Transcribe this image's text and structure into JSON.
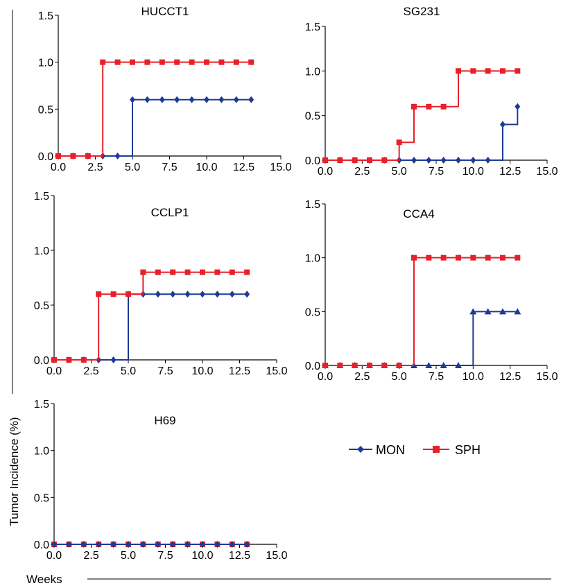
{
  "figure": {
    "ylabel": "Tumor Incidence (%)",
    "xlabel": "Weeks"
  },
  "legend": {
    "items": [
      {
        "label": "MON",
        "color": "#1f3a93",
        "marker": "diamond"
      },
      {
        "label": "SPH",
        "color": "#e8202a",
        "marker": "square"
      }
    ]
  },
  "chart_data": [
    {
      "type": "line",
      "step": true,
      "title": "HUCCT1",
      "xlim": [
        0,
        15
      ],
      "ylim": [
        0,
        1.5
      ],
      "xticks": [
        "0.0",
        "2.5",
        "5.0",
        "7.5",
        "10.0",
        "12.5",
        "15.0"
      ],
      "yticks": [
        "0.0",
        "0.5",
        "1.0",
        "1.5"
      ],
      "x": [
        0,
        1,
        2,
        3,
        4,
        5,
        6,
        7,
        8,
        9,
        10,
        11,
        12,
        13
      ],
      "series": [
        {
          "name": "MON",
          "marker": "diamond",
          "color": "#1f3a93",
          "values": [
            0,
            0,
            0,
            0,
            0,
            0.6,
            0.6,
            0.6,
            0.6,
            0.6,
            0.6,
            0.6,
            0.6,
            0.6
          ]
        },
        {
          "name": "SPH",
          "marker": "square",
          "color": "#e8202a",
          "values": [
            0,
            0,
            0,
            1,
            1,
            1,
            1,
            1,
            1,
            1,
            1,
            1,
            1,
            1
          ]
        }
      ]
    },
    {
      "type": "line",
      "step": true,
      "title": "SG231",
      "xlim": [
        0,
        15
      ],
      "ylim": [
        0,
        1.5
      ],
      "xticks": [
        "0.0",
        "2.5",
        "5.0",
        "7.5",
        "10.0",
        "12.5",
        "15.0"
      ],
      "yticks": [
        "0.0",
        "0.5",
        "1.0",
        "1.5"
      ],
      "x": [
        0,
        1,
        2,
        3,
        4,
        5,
        6,
        7,
        8,
        9,
        10,
        11,
        12,
        13
      ],
      "series": [
        {
          "name": "MON",
          "marker": "diamond",
          "color": "#1f3a93",
          "values": [
            0,
            0,
            0,
            0,
            0,
            0,
            0,
            0,
            0,
            0,
            0,
            0,
            0.4,
            0.6
          ]
        },
        {
          "name": "SPH",
          "marker": "square",
          "color": "#e8202a",
          "values": [
            0,
            0,
            0,
            0,
            0,
            0.2,
            0.6,
            0.6,
            0.6,
            1,
            1,
            1,
            1,
            1
          ]
        }
      ]
    },
    {
      "type": "line",
      "step": true,
      "title": "CCLP1",
      "xlim": [
        0,
        15
      ],
      "ylim": [
        0,
        1.5
      ],
      "xticks": [
        "0.0",
        "2.5",
        "5.0",
        "7.5",
        "10.0",
        "12.5",
        "15.0"
      ],
      "yticks": [
        "0.0",
        "0.5",
        "1.0",
        "1.5"
      ],
      "x": [
        0,
        1,
        2,
        3,
        4,
        5,
        6,
        7,
        8,
        9,
        10,
        11,
        12,
        13
      ],
      "series": [
        {
          "name": "MON",
          "marker": "diamond",
          "color": "#1f3a93",
          "values": [
            0,
            0,
            0,
            0,
            0,
            0.6,
            0.6,
            0.6,
            0.6,
            0.6,
            0.6,
            0.6,
            0.6,
            0.6
          ]
        },
        {
          "name": "SPH",
          "marker": "square",
          "color": "#e8202a",
          "values": [
            0,
            0,
            0,
            0.6,
            0.6,
            0.6,
            0.8,
            0.8,
            0.8,
            0.8,
            0.8,
            0.8,
            0.8,
            0.8
          ]
        }
      ]
    },
    {
      "type": "line",
      "step": true,
      "title": "CCA4",
      "xlim": [
        0,
        15
      ],
      "ylim": [
        0,
        1.5
      ],
      "xticks": [
        "0.0",
        "2.5",
        "5.0",
        "7.5",
        "10.0",
        "12.5",
        "15.0"
      ],
      "yticks": [
        "0.0",
        "0.5",
        "1.0",
        "1.5"
      ],
      "x": [
        0,
        1,
        2,
        3,
        4,
        5,
        6,
        7,
        8,
        9,
        10,
        11,
        12,
        13
      ],
      "series": [
        {
          "name": "MON",
          "marker": "triangle",
          "color": "#1f3a93",
          "values": [
            0,
            0,
            0,
            0,
            0,
            0,
            0,
            0,
            0,
            0,
            0.5,
            0.5,
            0.5,
            0.5
          ]
        },
        {
          "name": "SPH",
          "marker": "square",
          "color": "#e8202a",
          "values": [
            0,
            0,
            0,
            0,
            0,
            0,
            1,
            1,
            1,
            1,
            1,
            1,
            1,
            1
          ]
        }
      ]
    },
    {
      "type": "line",
      "step": true,
      "title": "H69",
      "xlim": [
        0,
        15
      ],
      "ylim": [
        0,
        1.5
      ],
      "xticks": [
        "0.0",
        "2.5",
        "5.0",
        "7.5",
        "10.0",
        "12.5",
        "15.0"
      ],
      "yticks": [
        "0.0",
        "0.5",
        "1.0",
        "1.5"
      ],
      "x": [
        0,
        1,
        2,
        3,
        4,
        5,
        6,
        7,
        8,
        9,
        10,
        11,
        12,
        13
      ],
      "series": [
        {
          "name": "SPH",
          "marker": "square",
          "color": "#e8202a",
          "values": [
            0,
            0,
            0,
            0,
            0,
            0,
            0,
            0,
            0,
            0,
            0,
            0,
            0,
            0
          ]
        },
        {
          "name": "MON",
          "marker": "diamond",
          "color": "#1f3a93",
          "values": [
            0,
            0,
            0,
            0,
            0,
            0,
            0,
            0,
            0,
            0,
            0,
            0,
            0,
            0
          ]
        }
      ]
    }
  ]
}
